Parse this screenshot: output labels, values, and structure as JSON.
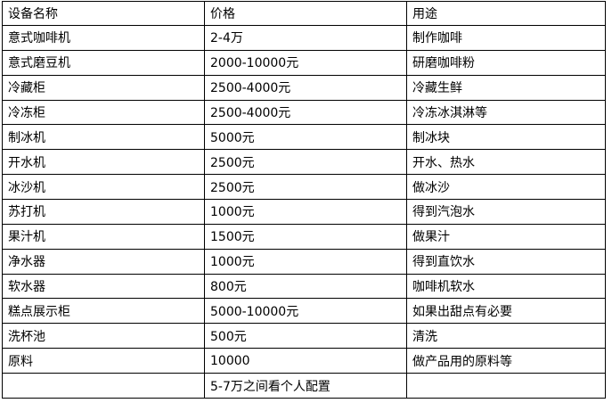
{
  "colors": {
    "border": "#000000",
    "text": "#000000",
    "background": "#ffffff"
  },
  "table": {
    "headers": [
      "设备名称",
      "价格",
      "用途"
    ],
    "rows": [
      {
        "name": "意式咖啡机",
        "price": "2-4万",
        "use": "制作咖啡"
      },
      {
        "name": "意式磨豆机",
        "price": "2000-10000元",
        "use": "研磨咖啡粉"
      },
      {
        "name": "冷藏柜",
        "price": "2500-4000元",
        "use": "冷藏生鲜"
      },
      {
        "name": "冷冻柜",
        "price": "2500-4000元",
        "use": "冷冻冰淇淋等"
      },
      {
        "name": "制冰机",
        "price": "5000元",
        "use": "制冰块"
      },
      {
        "name": "开水机",
        "price": "2500元",
        "use": "开水、热水"
      },
      {
        "name": "冰沙机",
        "price": "2500元",
        "use": "做冰沙"
      },
      {
        "name": "苏打机",
        "price": "1000元",
        "use": "得到汽泡水"
      },
      {
        "name": "果汁机",
        "price": "1500元",
        "use": "做果汁"
      },
      {
        "name": "净水器",
        "price": "1000元",
        "use": "得到直饮水"
      },
      {
        "name": "软水器",
        "price": "800元",
        "use": "咖啡机软水"
      },
      {
        "name": "糕点展示柜",
        "price": "5000-10000元",
        "use": "如果出甜点有必要"
      },
      {
        "name": "洗杯池",
        "price": "500元",
        "use": "清洗"
      },
      {
        "name": "原料",
        "price": "10000",
        "use": "做产品用的原料等"
      },
      {
        "name": "",
        "price": "5-7万之间看个人配置",
        "use": ""
      }
    ]
  }
}
